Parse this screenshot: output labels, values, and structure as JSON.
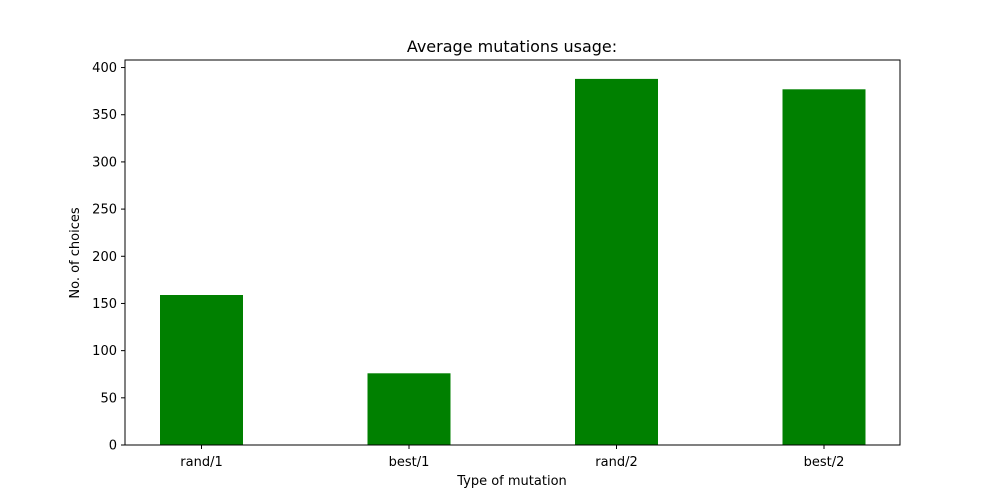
{
  "chart_data": {
    "type": "bar",
    "title": "Average mutations usage:",
    "xlabel": "Type of mutation",
    "ylabel": "No. of choices",
    "categories": [
      "rand/1",
      "best/1",
      "rand/2",
      "best/2"
    ],
    "values": [
      159,
      76,
      388,
      377
    ],
    "ylim": [
      0,
      408
    ],
    "yticks": [
      0,
      50,
      100,
      150,
      200,
      250,
      300,
      350,
      400
    ],
    "bar_color": "#008000",
    "grid": false,
    "legend": "none"
  }
}
